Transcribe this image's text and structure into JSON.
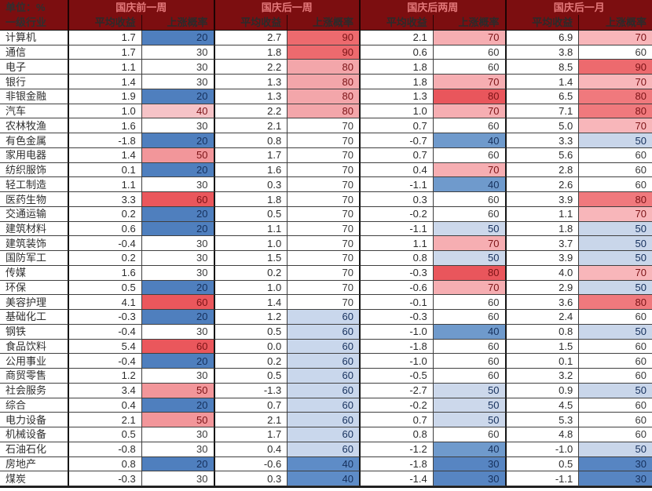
{
  "chart_data": {
    "type": "table",
    "unit_label": "单位：%",
    "row_header": "一级行业",
    "groups": [
      {
        "title": "国庆前一周",
        "avg_label": "平均收益",
        "prob_label": "上涨概率"
      },
      {
        "title": "国庆后一周",
        "avg_label": "平均收益",
        "prob_label": "上涨概率"
      },
      {
        "title": "国庆后两周",
        "avg_label": "平均收益",
        "prob_label": "上涨概率"
      },
      {
        "title": "国庆后一月",
        "avg_label": "平均收益",
        "prob_label": "上涨概率"
      }
    ],
    "rows": [
      {
        "industry": "计算机",
        "values": [
          "1.7",
          20,
          "2.7",
          90,
          "2.1",
          70,
          "6.9",
          70
        ]
      },
      {
        "industry": "通信",
        "values": [
          "1.7",
          30,
          "1.8",
          90,
          "0.6",
          60,
          "3.8",
          60
        ]
      },
      {
        "industry": "电子",
        "values": [
          "1.1",
          30,
          "2.2",
          80,
          "1.8",
          60,
          "8.5",
          90
        ]
      },
      {
        "industry": "银行",
        "values": [
          "1.4",
          30,
          "1.3",
          80,
          "1.8",
          70,
          "1.4",
          70
        ]
      },
      {
        "industry": "非银金融",
        "values": [
          "1.9",
          20,
          "1.3",
          80,
          "1.3",
          80,
          "6.5",
          80
        ]
      },
      {
        "industry": "汽车",
        "values": [
          "1.0",
          40,
          "2.2",
          80,
          "1.0",
          70,
          "7.1",
          80
        ]
      },
      {
        "industry": "农林牧渔",
        "values": [
          "1.6",
          30,
          "2.1",
          70,
          "0.7",
          60,
          "5.0",
          70
        ]
      },
      {
        "industry": "有色金属",
        "values": [
          "-1.8",
          20,
          "0.8",
          70,
          "-0.7",
          40,
          "3.3",
          50
        ]
      },
      {
        "industry": "家用电器",
        "values": [
          "1.4",
          50,
          "1.7",
          70,
          "0.7",
          60,
          "5.6",
          60
        ]
      },
      {
        "industry": "纺织服饰",
        "values": [
          "0.1",
          20,
          "1.6",
          70,
          "0.4",
          70,
          "2.8",
          60
        ]
      },
      {
        "industry": "轻工制造",
        "values": [
          "1.1",
          30,
          "0.3",
          70,
          "-1.1",
          40,
          "2.6",
          60
        ]
      },
      {
        "industry": "医药生物",
        "values": [
          "3.3",
          60,
          "1.8",
          70,
          "0.3",
          60,
          "3.9",
          80
        ]
      },
      {
        "industry": "交通运输",
        "values": [
          "0.2",
          20,
          "0.5",
          70,
          "-0.2",
          60,
          "1.1",
          70
        ]
      },
      {
        "industry": "建筑材料",
        "values": [
          "0.6",
          20,
          "1.1",
          70,
          "-1.1",
          50,
          "1.8",
          50
        ]
      },
      {
        "industry": "建筑装饰",
        "values": [
          "-0.4",
          30,
          "1.0",
          70,
          "1.1",
          70,
          "3.7",
          50
        ]
      },
      {
        "industry": "国防军工",
        "values": [
          "0.2",
          30,
          "1.5",
          70,
          "0.8",
          50,
          "3.9",
          50
        ]
      },
      {
        "industry": "传媒",
        "values": [
          "1.6",
          30,
          "0.2",
          70,
          "-0.3",
          80,
          "4.0",
          70
        ]
      },
      {
        "industry": "环保",
        "values": [
          "0.5",
          20,
          "1.0",
          70,
          "-0.6",
          70,
          "2.9",
          50
        ]
      },
      {
        "industry": "美容护理",
        "values": [
          "4.1",
          60,
          "1.4",
          70,
          "-0.1",
          60,
          "3.6",
          80
        ]
      },
      {
        "industry": "基础化工",
        "values": [
          "-0.3",
          20,
          "1.2",
          60,
          "-0.3",
          60,
          "2.4",
          60
        ]
      },
      {
        "industry": "钢铁",
        "values": [
          "-0.4",
          30,
          "0.5",
          60,
          "-1.0",
          40,
          "0.8",
          50
        ]
      },
      {
        "industry": "食品饮料",
        "values": [
          "5.4",
          60,
          "0.0",
          60,
          "-1.8",
          60,
          "1.5",
          60
        ]
      },
      {
        "industry": "公用事业",
        "values": [
          "-0.4",
          20,
          "0.2",
          60,
          "-1.0",
          60,
          "0.1",
          60
        ]
      },
      {
        "industry": "商贸零售",
        "values": [
          "1.2",
          30,
          "0.5",
          60,
          "-0.5",
          60,
          "3.2",
          60
        ]
      },
      {
        "industry": "社会服务",
        "values": [
          "3.4",
          50,
          "-1.3",
          60,
          "-2.7",
          50,
          "0.9",
          50
        ]
      },
      {
        "industry": "综合",
        "values": [
          "0.4",
          20,
          "0.7",
          60,
          "-0.2",
          50,
          "4.5",
          60
        ]
      },
      {
        "industry": "电力设备",
        "values": [
          "2.1",
          50,
          "2.1",
          60,
          "0.7",
          50,
          "5.3",
          60
        ]
      },
      {
        "industry": "机械设备",
        "values": [
          "0.5",
          30,
          "1.7",
          60,
          "0.8",
          60,
          "4.8",
          60
        ]
      },
      {
        "industry": "石油石化",
        "values": [
          "-0.8",
          30,
          "0.4",
          60,
          "-1.2",
          40,
          "-1.0",
          50
        ]
      },
      {
        "industry": "房地产",
        "values": [
          "0.8",
          20,
          "-0.6",
          40,
          "-1.8",
          30,
          "0.5",
          30
        ]
      },
      {
        "industry": "煤炭",
        "values": [
          "-0.3",
          30,
          "0.3",
          40,
          "-1.4",
          30,
          "-1.1",
          30
        ]
      }
    ]
  },
  "colors": {
    "header_bg": "#7c0e10",
    "header_text": "#e4797b",
    "grid_line": "#3f3f3f",
    "group_line": "#161616",
    "label_text": "#2f2f2f",
    "num_text": "#2b2b2b",
    "prob_text_blue": "#16305c",
    "prob_text_red": "#7c1316",
    "prob_text_neutral": "#3a3a3a",
    "prob_scales": [
      {
        "20": "#4f7fbe",
        "30": "#ffffff",
        "40": "#f6c3c7",
        "50": "#f2969a",
        "60": "#ea575c"
      },
      {
        "40": "#5e8cc7",
        "60": "#c9d7ec",
        "70": "#ffffff",
        "80": "#f3a6aa",
        "90": "#ed6a6e"
      },
      {
        "30": "#5785c2",
        "40": "#6f9acc",
        "50": "#ccd8eb",
        "60": "#ffffff",
        "70": "#f6aeb2",
        "80": "#e9565c"
      },
      {
        "30": "#5785c2",
        "50": "#c9d6ea",
        "60": "#ffffff",
        "70": "#f8b6ba",
        "80": "#f0797d",
        "90": "#ed6a6e"
      }
    ]
  }
}
